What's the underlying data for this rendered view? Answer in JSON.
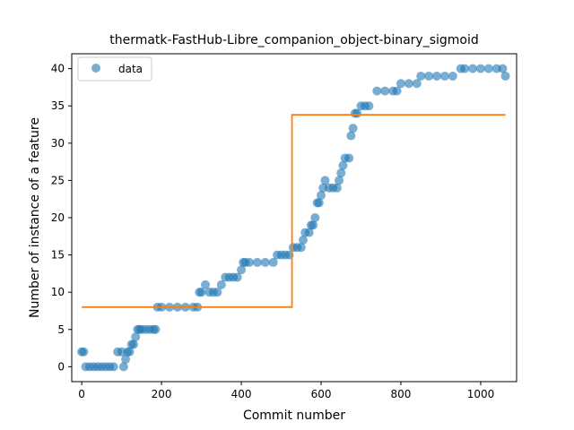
{
  "chart_data": {
    "type": "scatter",
    "title": "thermatk-FastHub-Libre_companion_object-binary_sigmoid",
    "xlabel": "Commit number",
    "ylabel": "Number of instance of a feature",
    "xlim": [
      -25,
      1090
    ],
    "ylim": [
      -2,
      42
    ],
    "xticks": [
      0,
      200,
      400,
      600,
      800,
      1000
    ],
    "yticks": [
      0,
      5,
      10,
      15,
      20,
      25,
      30,
      35,
      40
    ],
    "grid": false,
    "legend": {
      "position": "top-left",
      "entries": [
        "data"
      ]
    },
    "colors": {
      "data": "#1f77b4",
      "fit": "#ff7f0e"
    },
    "series": [
      {
        "name": "data",
        "kind": "scatter",
        "x": [
          0,
          5,
          10,
          20,
          30,
          40,
          50,
          60,
          70,
          80,
          90,
          100,
          105,
          110,
          115,
          120,
          125,
          130,
          135,
          140,
          145,
          150,
          160,
          170,
          180,
          185,
          190,
          200,
          220,
          240,
          260,
          280,
          290,
          295,
          300,
          310,
          320,
          330,
          340,
          350,
          360,
          370,
          380,
          390,
          400,
          405,
          410,
          420,
          440,
          460,
          480,
          490,
          500,
          510,
          520,
          530,
          540,
          550,
          555,
          560,
          570,
          575,
          580,
          585,
          590,
          595,
          600,
          605,
          610,
          620,
          630,
          640,
          645,
          650,
          655,
          660,
          670,
          675,
          680,
          685,
          690,
          700,
          710,
          720,
          740,
          760,
          780,
          790,
          800,
          820,
          840,
          850,
          870,
          890,
          910,
          930,
          950,
          960,
          980,
          1000,
          1020,
          1040,
          1055,
          1062
        ],
        "y": [
          2,
          2,
          0,
          0,
          0,
          0,
          0,
          0,
          0,
          0,
          2,
          2,
          0,
          1,
          2,
          2,
          3,
          3,
          4,
          5,
          5,
          5,
          5,
          5,
          5,
          5,
          8,
          8,
          8,
          8,
          8,
          8,
          8,
          10,
          10,
          11,
          10,
          10,
          10,
          11,
          12,
          12,
          12,
          12,
          13,
          14,
          14,
          14,
          14,
          14,
          14,
          15,
          15,
          15,
          15,
          16,
          16,
          16,
          17,
          18,
          18,
          19,
          19,
          20,
          22,
          22,
          23,
          24,
          25,
          24,
          24,
          24,
          25,
          26,
          27,
          28,
          28,
          31,
          32,
          34,
          34,
          35,
          35,
          35,
          37,
          37,
          37,
          37,
          38,
          38,
          38,
          39,
          39,
          39,
          39,
          39,
          40,
          40,
          40,
          40,
          40,
          40,
          40,
          39
        ]
      },
      {
        "name": "",
        "kind": "step-line",
        "x": [
          0,
          527,
          527,
          1062
        ],
        "y": [
          8,
          8,
          33.8,
          33.8
        ]
      }
    ]
  }
}
